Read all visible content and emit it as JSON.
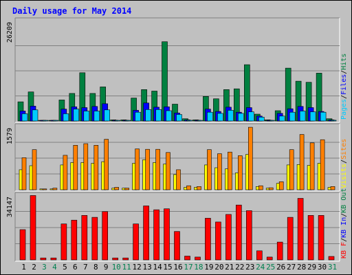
{
  "chart_data": {
    "type": "bar",
    "title": "Daily usage for May 2014",
    "categories": [
      "1",
      "2",
      "3",
      "4",
      "5",
      "6",
      "7",
      "8",
      "9",
      "10",
      "11",
      "12",
      "13",
      "14",
      "15",
      "16",
      "17",
      "18",
      "19",
      "20",
      "21",
      "22",
      "23",
      "24",
      "25",
      "26",
      "27",
      "28",
      "29",
      "30",
      "31"
    ],
    "weekend_days": [
      "3",
      "4",
      "10",
      "11",
      "17",
      "18",
      "24",
      "25",
      "31"
    ],
    "colors": {
      "background": "#c0c0c0",
      "title": "#0000ff",
      "pages": "#00ccff",
      "files": "#0000ff",
      "hits": "#008040",
      "visits": "#ffff00",
      "sites": "#ff8000",
      "kb_f": "#ff0000",
      "kb_in": "#0000ff",
      "kb_out": "#008040",
      "weekend_label": "#00804f"
    },
    "panels": [
      {
        "max_label": "26209",
        "legend": [
          {
            "text": "Pages",
            "color": "#00ccff"
          },
          {
            "text": "/",
            "color": "#000000"
          },
          {
            "text": "Files",
            "color": "#0000ff"
          },
          {
            "text": "/",
            "color": "#000000"
          },
          {
            "text": "Hits",
            "color": "#008040"
          }
        ],
        "ylim": [
          0,
          26209
        ],
        "series": [
          {
            "name": "Hits",
            "values": [
              5000,
              7600,
              100,
              100,
              5500,
              7200,
              12600,
              7200,
              8900,
              300,
              300,
              6000,
              8200,
              7800,
              20700,
              4400,
              600,
              300,
              6400,
              5800,
              8200,
              8400,
              14700,
              1800,
              300,
              2700,
              13800,
              10400,
              10100,
              12500,
              600
            ]
          },
          {
            "name": "Files",
            "values": [
              2600,
              3900,
              80,
              80,
              3100,
              3700,
              3500,
              3800,
              4500,
              200,
              200,
              2800,
              4700,
              3600,
              3700,
              2100,
              300,
              200,
              3100,
              2500,
              3600,
              2300,
              3500,
              1300,
              200,
              2000,
              3200,
              3800,
              3500,
              2500,
              300
            ]
          },
          {
            "name": "Pages",
            "values": [
              1900,
              2900,
              60,
              60,
              1900,
              3100,
              2600,
              2600,
              2900,
              150,
              150,
              2300,
              3000,
              3000,
              2700,
              1700,
              200,
              150,
              2300,
              2000,
              2800,
              2000,
              2400,
              1000,
              150,
              1300,
              2300,
              2600,
              2400,
              2300,
              200
            ]
          }
        ]
      },
      {
        "max_label": "1579",
        "legend": [
          {
            "text": "Visits",
            "color": "#ffff00"
          },
          {
            "text": "/",
            "color": "#000000"
          },
          {
            "text": "Sites",
            "color": "#ff8000"
          }
        ],
        "ylim": [
          0,
          1579
        ],
        "series": [
          {
            "name": "Visits",
            "values": [
              500,
              600,
              20,
              20,
              620,
              680,
              680,
              660,
              700,
              40,
              40,
              660,
              750,
              680,
              640,
              380,
              60,
              60,
              620,
              550,
              520,
              420,
              880,
              80,
              40,
              160,
              620,
              630,
              610,
              660,
              60
            ]
          },
          {
            "name": "Sites",
            "values": [
              800,
              1000,
              20,
              40,
              860,
              1110,
              1150,
              1110,
              1260,
              60,
              40,
              1020,
              1010,
              1010,
              930,
              500,
              100,
              80,
              1000,
              900,
              940,
              850,
              1560,
              100,
              50,
              200,
              1000,
              1380,
              1170,
              1250,
              80
            ]
          }
        ]
      },
      {
        "max_label": "34147",
        "legend": [
          {
            "text": "KB F",
            "color": "#ff0000"
          },
          {
            "text": "/",
            "color": "#000000"
          },
          {
            "text": "KB In",
            "color": "#0000ff"
          },
          {
            "text": "/",
            "color": "#000000"
          },
          {
            "text": "KB Out",
            "color": "#008040"
          }
        ],
        "ylim": [
          0,
          34147
        ],
        "series": [
          {
            "name": "KB F",
            "values": [
              16000,
              34000,
              1000,
              1000,
              19000,
              21000,
              23500,
              22500,
              25500,
              1000,
              1000,
              19000,
              28500,
              26500,
              27000,
              15000,
              2000,
              1500,
              22000,
              20000,
              24000,
              29000,
              26000,
              4800,
              1500,
              9400,
              22500,
              32500,
              23500,
              23500,
              1800
            ]
          }
        ]
      }
    ]
  }
}
